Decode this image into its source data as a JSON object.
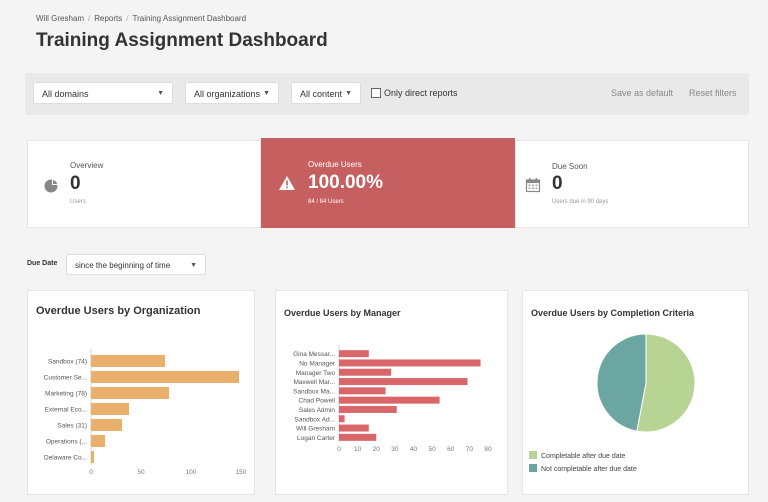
{
  "breadcrumb": {
    "items": [
      "Will Gresham",
      "Reports",
      "Training Assignment Dashboard"
    ]
  },
  "page": {
    "title": "Training Assignment Dashboard"
  },
  "filters": {
    "domain": "All domains",
    "organization": "All organizations",
    "content": "All content",
    "only_direct_reports": "Only direct reports",
    "save_default": "Save as default",
    "reset": "Reset filters"
  },
  "stats": {
    "overview": {
      "label": "Overview",
      "value": "0",
      "sub": "Users",
      "icon": "pie-chart-icon"
    },
    "overdue": {
      "label": "Overdue Users",
      "value": "100.00%",
      "sub": "84 / 84 Users",
      "icon": "warning-icon"
    },
    "due_soon": {
      "label": "Due Soon",
      "value": "0",
      "sub": "Users due in 90 days",
      "icon": "calendar-icon"
    }
  },
  "due_date": {
    "label": "Due Date",
    "value": "since the beginning of time"
  },
  "colors": {
    "org_bar": "#e8b06a",
    "manager_bar": "#d9676a",
    "overdue_card": "#c65f5f",
    "pie_completable": "#b8d495",
    "pie_not_completable": "#6ba6a3"
  },
  "chart_data": [
    {
      "type": "bar",
      "orientation": "horizontal",
      "title": "Overdue Users by Organization",
      "categories": [
        "Sandbox (74)",
        "Customer Se...",
        "Marketing (78)",
        "External Eco...",
        "Sales (31)",
        "Operations (...",
        "Delaware Co..."
      ],
      "values": [
        74,
        148,
        78,
        38,
        31,
        14,
        3
      ],
      "xlim": [
        0,
        150
      ],
      "xticks": [
        "0",
        "50",
        "100",
        "150"
      ]
    },
    {
      "type": "bar",
      "orientation": "horizontal",
      "title": "Overdue Users by Manager",
      "categories": [
        "Gina Messar...",
        "No Manager",
        "Manager Two",
        "Maxwell Mar...",
        "Sandbox Ma...",
        "Chad Powell",
        "Sales Admin",
        "Sandbox Ad...",
        "Will Gresham",
        "Logan Carter"
      ],
      "values": [
        16,
        76,
        28,
        69,
        25,
        54,
        31,
        3,
        16,
        20
      ],
      "xlim": [
        0,
        80
      ],
      "xticks": [
        "0",
        "10",
        "20",
        "30",
        "40",
        "50",
        "60",
        "70",
        "80"
      ]
    },
    {
      "type": "pie",
      "title": "Overdue Users by Completion Criteria",
      "slices": [
        {
          "name": "Completable after due date",
          "value": 53
        },
        {
          "name": "Not completable after due date",
          "value": 47
        }
      ],
      "legend": "bottom"
    }
  ]
}
